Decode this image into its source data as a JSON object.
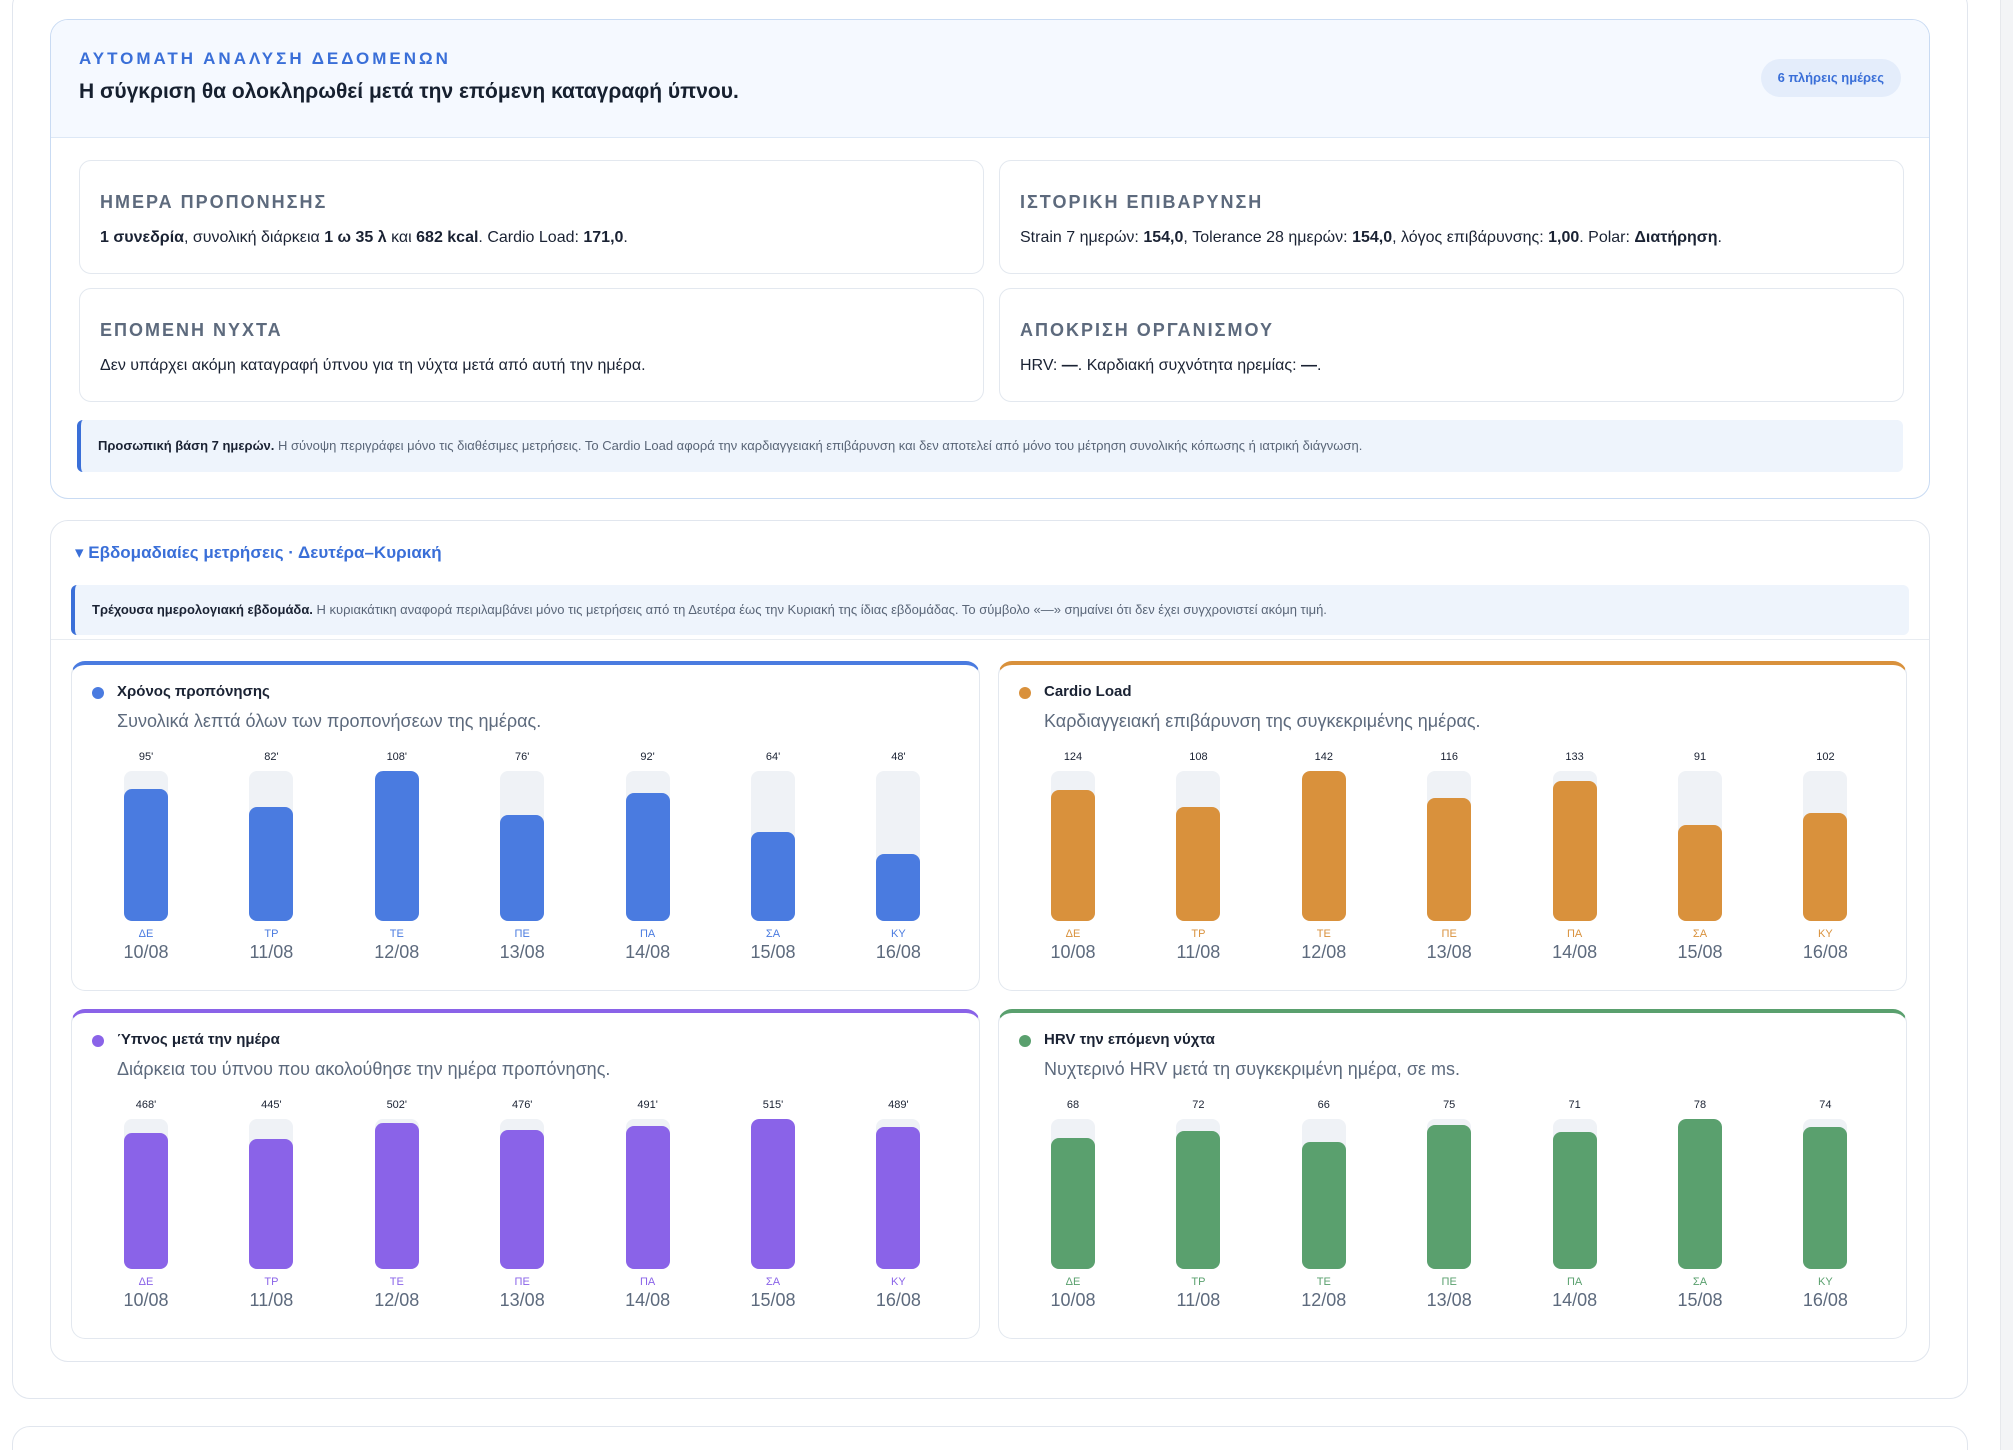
{
  "analysis": {
    "eyebrow": "ΑΥΤΟΜΑΤΗ ΑΝΑΛΥΣΗ ΔΕΔΟΜΕΝΩΝ",
    "headline": "Η σύγκριση θα ολοκληρωθεί μετά την επόμενη καταγραφή ύπνου.",
    "badge": "6 πλήρεις ημέρες",
    "cards": [
      {
        "title": "ΗΜΕΡΑ ΠΡΟΠΟΝΗΣΗΣ",
        "parts": [
          {
            "t": "1 συνεδρία",
            "b": true
          },
          {
            "t": ", συνολική διάρκεια ",
            "b": false
          },
          {
            "t": "1 ω 35 λ",
            "b": true
          },
          {
            "t": " και ",
            "b": false
          },
          {
            "t": "682 kcal",
            "b": true
          },
          {
            "t": ". Cardio Load: ",
            "b": false
          },
          {
            "t": "171,0",
            "b": true
          },
          {
            "t": ".",
            "b": false
          }
        ]
      },
      {
        "title": "ΙΣΤΟΡΙΚΗ ΕΠΙΒΑΡΥΝΣΗ",
        "parts": [
          {
            "t": "Strain 7 ημερών: ",
            "b": false
          },
          {
            "t": "154,0",
            "b": true
          },
          {
            "t": ", Tolerance 28 ημερών: ",
            "b": false
          },
          {
            "t": "154,0",
            "b": true
          },
          {
            "t": ", λόγος επιβάρυνσης: ",
            "b": false
          },
          {
            "t": "1,00",
            "b": true
          },
          {
            "t": ". Polar: ",
            "b": false
          },
          {
            "t": "Διατήρηση",
            "b": true
          },
          {
            "t": ".",
            "b": false
          }
        ]
      },
      {
        "title": "ΕΠΟΜΕΝΗ ΝΥΧΤΑ",
        "parts": [
          {
            "t": "Δεν υπάρχει ακόμη καταγραφή ύπνου για τη νύχτα μετά από αυτή την ημέρα.",
            "b": false
          }
        ]
      },
      {
        "title": "ΑΠΟΚΡΙΣΗ ΟΡΓΑΝΙΣΜΟΥ",
        "parts": [
          {
            "t": "HRV: ",
            "b": false
          },
          {
            "t": "—",
            "b": true
          },
          {
            "t": ". Καρδιακή συχνότητα ηρεμίας: ",
            "b": false
          },
          {
            "t": "—",
            "b": true
          },
          {
            "t": ".",
            "b": false
          }
        ]
      }
    ],
    "note_bold": "Προσωπική βάση 7 ημερών.",
    "note_text": " Η σύνοψη περιγράφει μόνο τις διαθέσιμες μετρήσεις. Το Cardio Load αφορά την καρδιαγγειακή επιβάρυνση και δεν αποτελεί από μόνο του μέτρηση συνολικής κόπωσης ή ιατρική διάγνωση."
  },
  "weekly": {
    "toggle": "▾ Εβδομαδιαίες μετρήσεις · Δευτέρα–Κυριακή",
    "note_bold": "Τρέχουσα ημερολογιακή εβδομάδα.",
    "note_text": " Η κυριακάτικη αναφορά περιλαμβάνει μόνο τις μετρήσεις από τη Δευτέρα έως την Κυριακή της ίδιας εβδομάδας. Το σύμβολο «—» σημαίνει ότι δεν έχει συγχρονιστεί ακόμη τιμή."
  },
  "chart_data": [
    {
      "type": "bar",
      "title": "Χρόνος προπόνησης",
      "subtitle": "Συνολικά λεπτά όλων των προπονήσεων της ημέρας.",
      "color": "#4a7be0",
      "unit": "'",
      "max": 108,
      "days": [
        "ΔΕ",
        "ΤΡ",
        "ΤΕ",
        "ΠΕ",
        "ΠΑ",
        "ΣΑ",
        "ΚΥ"
      ],
      "categories": [
        "10/08",
        "11/08",
        "12/08",
        "13/08",
        "14/08",
        "15/08",
        "16/08"
      ],
      "values": [
        95,
        82,
        108,
        76,
        92,
        64,
        48
      ]
    },
    {
      "type": "bar",
      "title": "Cardio Load",
      "subtitle": "Καρδιαγγειακή επιβάρυνση της συγκεκριμένης ημέρας.",
      "color": "#d9913c",
      "unit": "",
      "max": 142,
      "days": [
        "ΔΕ",
        "ΤΡ",
        "ΤΕ",
        "ΠΕ",
        "ΠΑ",
        "ΣΑ",
        "ΚΥ"
      ],
      "categories": [
        "10/08",
        "11/08",
        "12/08",
        "13/08",
        "14/08",
        "15/08",
        "16/08"
      ],
      "values": [
        124,
        108,
        142,
        116,
        133,
        91,
        102
      ]
    },
    {
      "type": "bar",
      "title": "Ύπνος μετά την ημέρα",
      "subtitle": "Διάρκεια του ύπνου που ακολούθησε την ημέρα προπόνησης.",
      "color": "#8a63e8",
      "unit": "'",
      "max": 515,
      "days": [
        "ΔΕ",
        "ΤΡ",
        "ΤΕ",
        "ΠΕ",
        "ΠΑ",
        "ΣΑ",
        "ΚΥ"
      ],
      "categories": [
        "10/08",
        "11/08",
        "12/08",
        "13/08",
        "14/08",
        "15/08",
        "16/08"
      ],
      "values": [
        468,
        445,
        502,
        476,
        491,
        515,
        489
      ]
    },
    {
      "type": "bar",
      "title": "HRV την επόμενη νύχτα",
      "subtitle": "Νυχτερινό HRV μετά τη συγκεκριμένη ημέρα, σε ms.",
      "color": "#5aa06e",
      "unit": "",
      "max": 78,
      "days": [
        "ΔΕ",
        "ΤΡ",
        "ΤΕ",
        "ΠΕ",
        "ΠΑ",
        "ΣΑ",
        "ΚΥ"
      ],
      "categories": [
        "10/08",
        "11/08",
        "12/08",
        "13/08",
        "14/08",
        "15/08",
        "16/08"
      ],
      "values": [
        68,
        72,
        66,
        75,
        71,
        78,
        74
      ]
    }
  ]
}
